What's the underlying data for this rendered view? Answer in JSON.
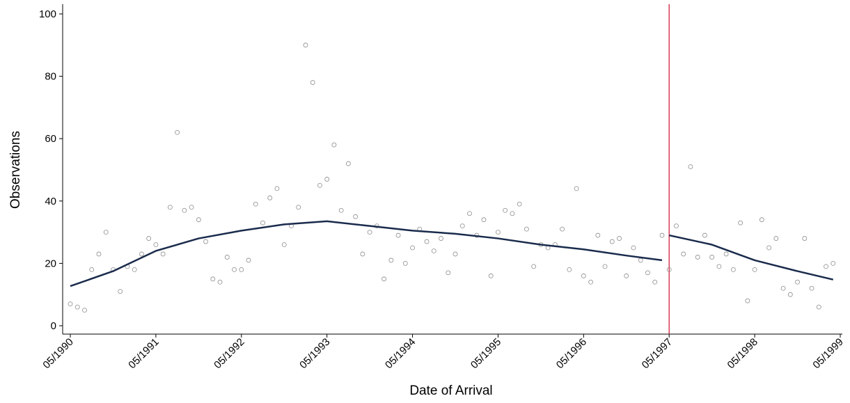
{
  "chart_data": {
    "type": "scatter",
    "x_label": "Date of Arrival",
    "y_label": "Observations",
    "x": [
      "1990-05",
      "1990-06",
      "1990-07",
      "1990-08",
      "1990-09",
      "1990-10",
      "1990-11",
      "1990-12",
      "1991-01",
      "1991-02",
      "1991-03",
      "1991-04",
      "1991-05",
      "1991-06",
      "1991-07",
      "1991-08",
      "1991-09",
      "1991-10",
      "1991-11",
      "1991-12",
      "1992-01",
      "1992-02",
      "1992-03",
      "1992-04",
      "1992-05",
      "1992-06",
      "1992-07",
      "1992-08",
      "1992-09",
      "1992-10",
      "1992-11",
      "1992-12",
      "1993-01",
      "1993-02",
      "1993-03",
      "1993-04",
      "1993-05",
      "1993-06",
      "1993-07",
      "1993-08",
      "1993-09",
      "1993-10",
      "1993-11",
      "1993-12",
      "1994-01",
      "1994-02",
      "1994-03",
      "1994-04",
      "1994-05",
      "1994-06",
      "1994-07",
      "1994-08",
      "1994-09",
      "1994-10",
      "1994-11",
      "1994-12",
      "1995-01",
      "1995-02",
      "1995-03",
      "1995-04",
      "1995-05",
      "1995-06",
      "1995-07",
      "1995-08",
      "1995-09",
      "1995-10",
      "1995-11",
      "1995-12",
      "1996-01",
      "1996-02",
      "1996-03",
      "1996-04",
      "1996-05",
      "1996-06",
      "1996-07",
      "1996-08",
      "1996-09",
      "1996-10",
      "1996-11",
      "1996-12",
      "1997-01",
      "1997-02",
      "1997-03",
      "1997-04",
      "1997-05",
      "1997-06",
      "1997-07",
      "1997-08",
      "1997-09",
      "1997-10",
      "1997-11",
      "1997-12",
      "1998-01",
      "1998-02",
      "1998-03",
      "1998-04",
      "1998-05",
      "1998-06",
      "1998-07",
      "1998-08",
      "1998-09",
      "1998-10",
      "1998-11",
      "1998-12",
      "1999-01",
      "1999-02",
      "1999-03",
      "1999-04"
    ],
    "series": [
      {
        "kind": "scatter",
        "color": "#8c8c8c",
        "values": [
          7,
          6,
          5,
          18,
          23,
          30,
          18,
          11,
          19,
          18,
          23,
          28,
          26,
          23,
          38,
          62,
          37,
          38,
          34,
          27,
          15,
          14,
          22,
          18,
          18,
          21,
          39,
          33,
          41,
          44,
          26,
          32,
          38,
          90,
          78,
          45,
          47,
          58,
          37,
          52,
          35,
          23,
          30,
          32,
          15,
          21,
          29,
          20,
          25,
          31,
          27,
          24,
          28,
          17,
          23,
          32,
          36,
          29,
          34,
          16,
          30,
          37,
          36,
          39,
          31,
          19,
          26,
          25,
          26,
          31,
          18,
          44,
          16,
          14,
          29,
          19,
          27,
          28,
          16,
          25,
          21,
          17,
          14,
          29,
          18,
          32,
          23,
          51,
          22,
          29,
          22,
          19,
          23,
          18,
          33,
          8,
          18,
          34,
          25,
          28,
          12,
          10,
          14,
          28,
          12,
          6,
          19,
          20
        ]
      },
      {
        "kind": "line",
        "color": "#1a2b4c",
        "x": [
          "1990-05",
          "1990-11",
          "1991-05",
          "1991-11",
          "1992-05",
          "1992-11",
          "1993-05",
          "1993-11",
          "1994-05",
          "1994-11",
          "1995-05",
          "1995-11",
          "1996-05",
          "1996-11",
          "1997-04"
        ],
        "values": [
          12.7,
          17.5,
          24,
          28,
          30.5,
          32.5,
          33.5,
          32,
          30.5,
          29.5,
          28,
          26,
          24.5,
          22.5,
          21
        ]
      },
      {
        "kind": "line",
        "color": "#1a2b4c",
        "x": [
          "1997-05",
          "1997-11",
          "1998-05",
          "1998-11",
          "1999-04"
        ],
        "values": [
          29,
          26,
          21,
          17.5,
          14.8
        ]
      }
    ],
    "vline": {
      "x": "1997-05",
      "color": "#d0203c"
    },
    "xlim": [
      "1990-05",
      "1999-05"
    ],
    "xticks": [
      {
        "value": "1990-05",
        "label": "05/1990"
      },
      {
        "value": "1991-05",
        "label": "05/1991"
      },
      {
        "value": "1992-05",
        "label": "05/1992"
      },
      {
        "value": "1993-05",
        "label": "05/1993"
      },
      {
        "value": "1994-05",
        "label": "05/1994"
      },
      {
        "value": "1995-05",
        "label": "05/1995"
      },
      {
        "value": "1996-05",
        "label": "05/1996"
      },
      {
        "value": "1997-05",
        "label": "05/1997"
      },
      {
        "value": "1998-05",
        "label": "05/1998"
      },
      {
        "value": "1999-05",
        "label": "05/1999"
      }
    ],
    "ylim": [
      0,
      100
    ],
    "yticks": [
      0,
      20,
      40,
      60,
      80,
      100
    ]
  }
}
